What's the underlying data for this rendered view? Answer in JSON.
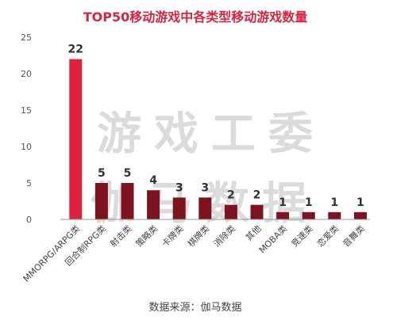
{
  "chart_data": {
    "type": "bar",
    "title": "TOP50移动游戏中各类型移动游戏数量",
    "categories": [
      "MMORPG/ARPG类",
      "回合制RPG类",
      "射击类",
      "策略类",
      "卡牌类",
      "棋牌类",
      "消除类",
      "其他",
      "MOBA类",
      "竞速类",
      "恋爱类",
      "音舞类"
    ],
    "values": [
      22,
      5,
      5,
      4,
      3,
      3,
      2,
      2,
      1,
      1,
      1,
      1
    ],
    "ylim": [
      0,
      25
    ],
    "yticks": [
      0,
      5,
      10,
      15,
      20,
      25
    ],
    "xlabel": "",
    "ylabel": "",
    "grid": false,
    "colors": {
      "highlight": "#e0203f",
      "default": "#7d1220"
    }
  },
  "watermark": {
    "line1": "游戏工委",
    "line2": "伽马数据"
  },
  "source": "数据来源：伽马数据"
}
